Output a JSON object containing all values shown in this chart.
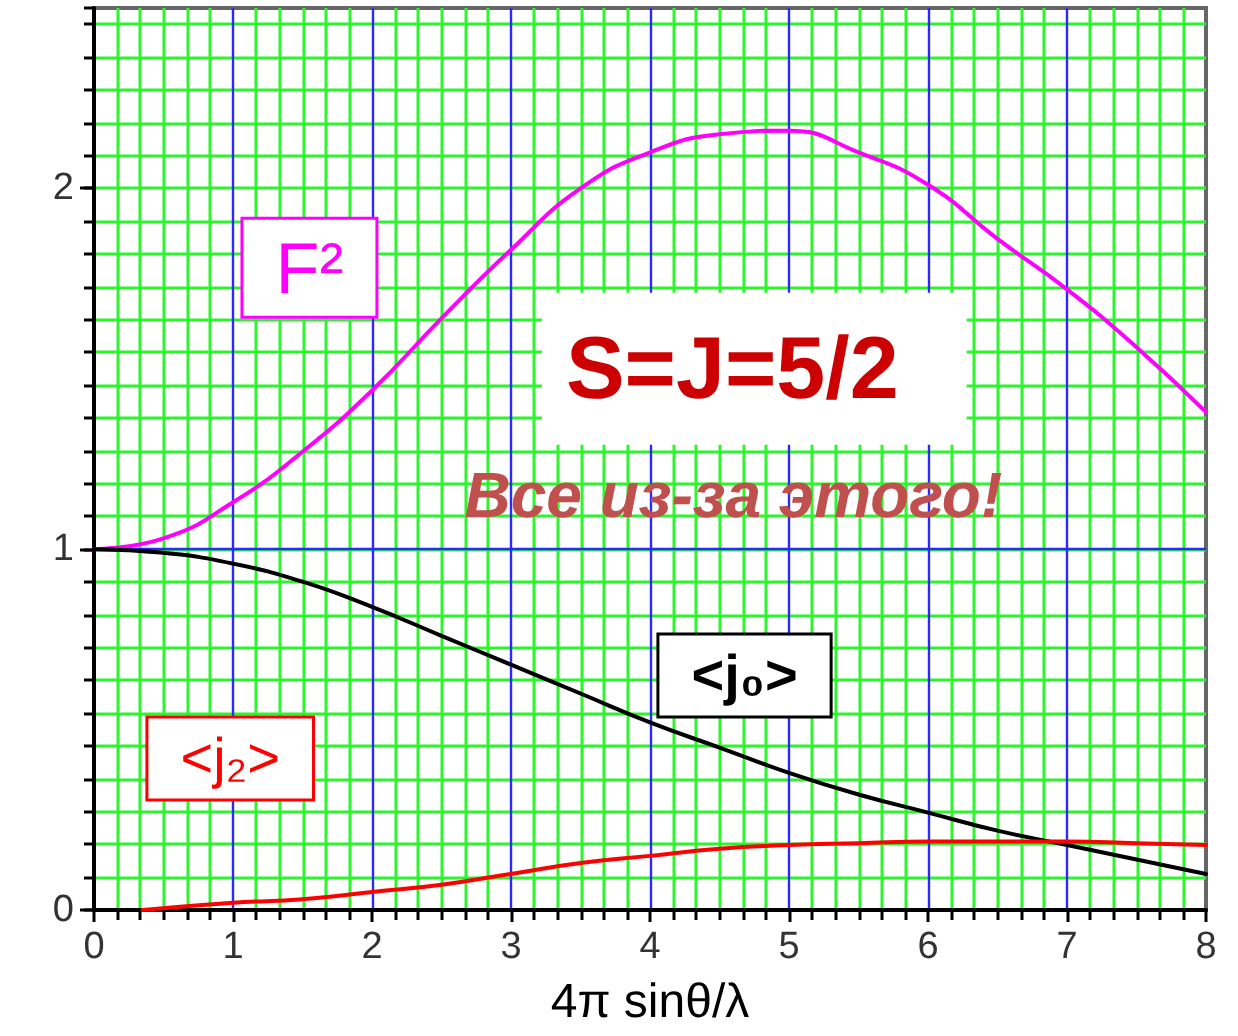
{
  "chart_data": {
    "type": "line",
    "xlabel": "4π sinθ/λ",
    "annotations": [
      "S=J=5/2",
      "Все из-за этого!"
    ],
    "x": [
      0,
      0.5,
      1,
      1.5,
      2,
      2.5,
      3,
      3.5,
      4,
      4.5,
      5,
      5.5,
      6,
      6.5,
      7,
      7.5,
      8
    ],
    "series": [
      {
        "name": "F²",
        "color": "#ff00ff",
        "values": [
          1,
          1.03,
          1.13,
          1.27,
          1.44,
          1.64,
          1.83,
          2.0,
          2.1,
          2.15,
          2.16,
          2.1,
          2.01,
          1.86,
          1.72,
          1.56,
          1.38
        ]
      },
      {
        "name": "<j₀>",
        "color": "#000000",
        "values": [
          1,
          0.99,
          0.96,
          0.91,
          0.84,
          0.76,
          0.68,
          0.6,
          0.52,
          0.45,
          0.38,
          0.32,
          0.27,
          0.22,
          0.18,
          0.14,
          0.1
        ]
      },
      {
        "name": "<j₂>",
        "color": "#ff0000",
        "x": [
          0.35,
          1,
          1.5,
          2,
          2.5,
          3,
          3.5,
          4,
          4.5,
          5,
          5.5,
          6,
          6.5,
          7,
          7.5,
          8
        ],
        "values": [
          0,
          0.02,
          0.03,
          0.05,
          0.07,
          0.1,
          0.13,
          0.15,
          0.17,
          0.18,
          0.185,
          0.19,
          0.19,
          0.19,
          0.185,
          0.18
        ]
      }
    ],
    "xlim": [
      0,
      8
    ],
    "xticks": [
      0,
      1,
      2,
      3,
      4,
      5,
      6,
      7,
      8
    ],
    "ylim": [
      0,
      2.5
    ],
    "yticks": [
      0,
      1,
      2
    ],
    "grid": true,
    "marker": "none",
    "line_style": "solid"
  }
}
